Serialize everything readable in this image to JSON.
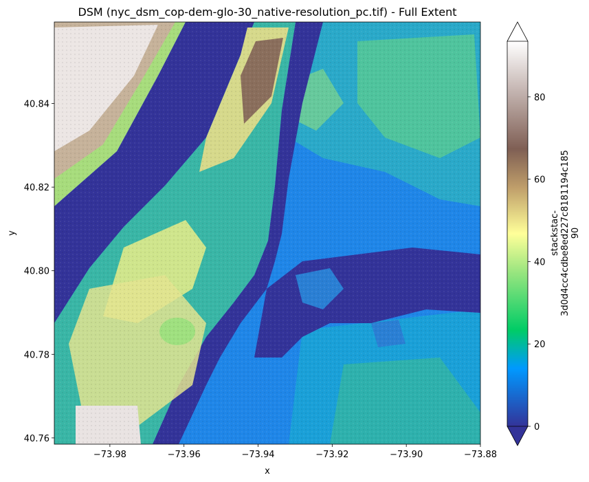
{
  "title": "DSM (nyc_dsm_cop-dem-glo-30_native-resolution_pc.tif) - Full Extent",
  "map": {
    "type": "heatmap",
    "colormap": "terrain",
    "xlabel": "x",
    "ylabel": "y",
    "xticks": [
      "−73.98",
      "−73.96",
      "−73.94",
      "−73.92",
      "−73.90",
      "−73.88"
    ],
    "xtick_values": [
      -73.98,
      -73.96,
      -73.94,
      -73.92,
      -73.9,
      -73.88
    ],
    "yticks": [
      "40.84",
      "40.82",
      "40.80",
      "40.78",
      "40.76"
    ],
    "ytick_values": [
      40.84,
      40.82,
      40.8,
      40.78,
      40.76
    ],
    "xlim": [
      -73.995,
      -73.88
    ],
    "ylim": [
      40.7585,
      40.8595
    ]
  },
  "colorbar": {
    "label_lines": [
      "stackstac-",
      "3d0d4cc4cdbe8ed227c8181194c185",
      "90"
    ],
    "ticks": [
      "0",
      "20",
      "40",
      "60",
      "80"
    ],
    "tick_values": [
      0,
      20,
      40,
      60,
      80
    ],
    "range": [
      -5,
      95
    ],
    "extend": "both",
    "colors": [
      "#333399",
      "#0099ff",
      "#00cc66",
      "#99e57f",
      "#ffff99",
      "#bf9e6a",
      "#7f5f54",
      "#bfaeaa",
      "#ffffff"
    ]
  }
}
